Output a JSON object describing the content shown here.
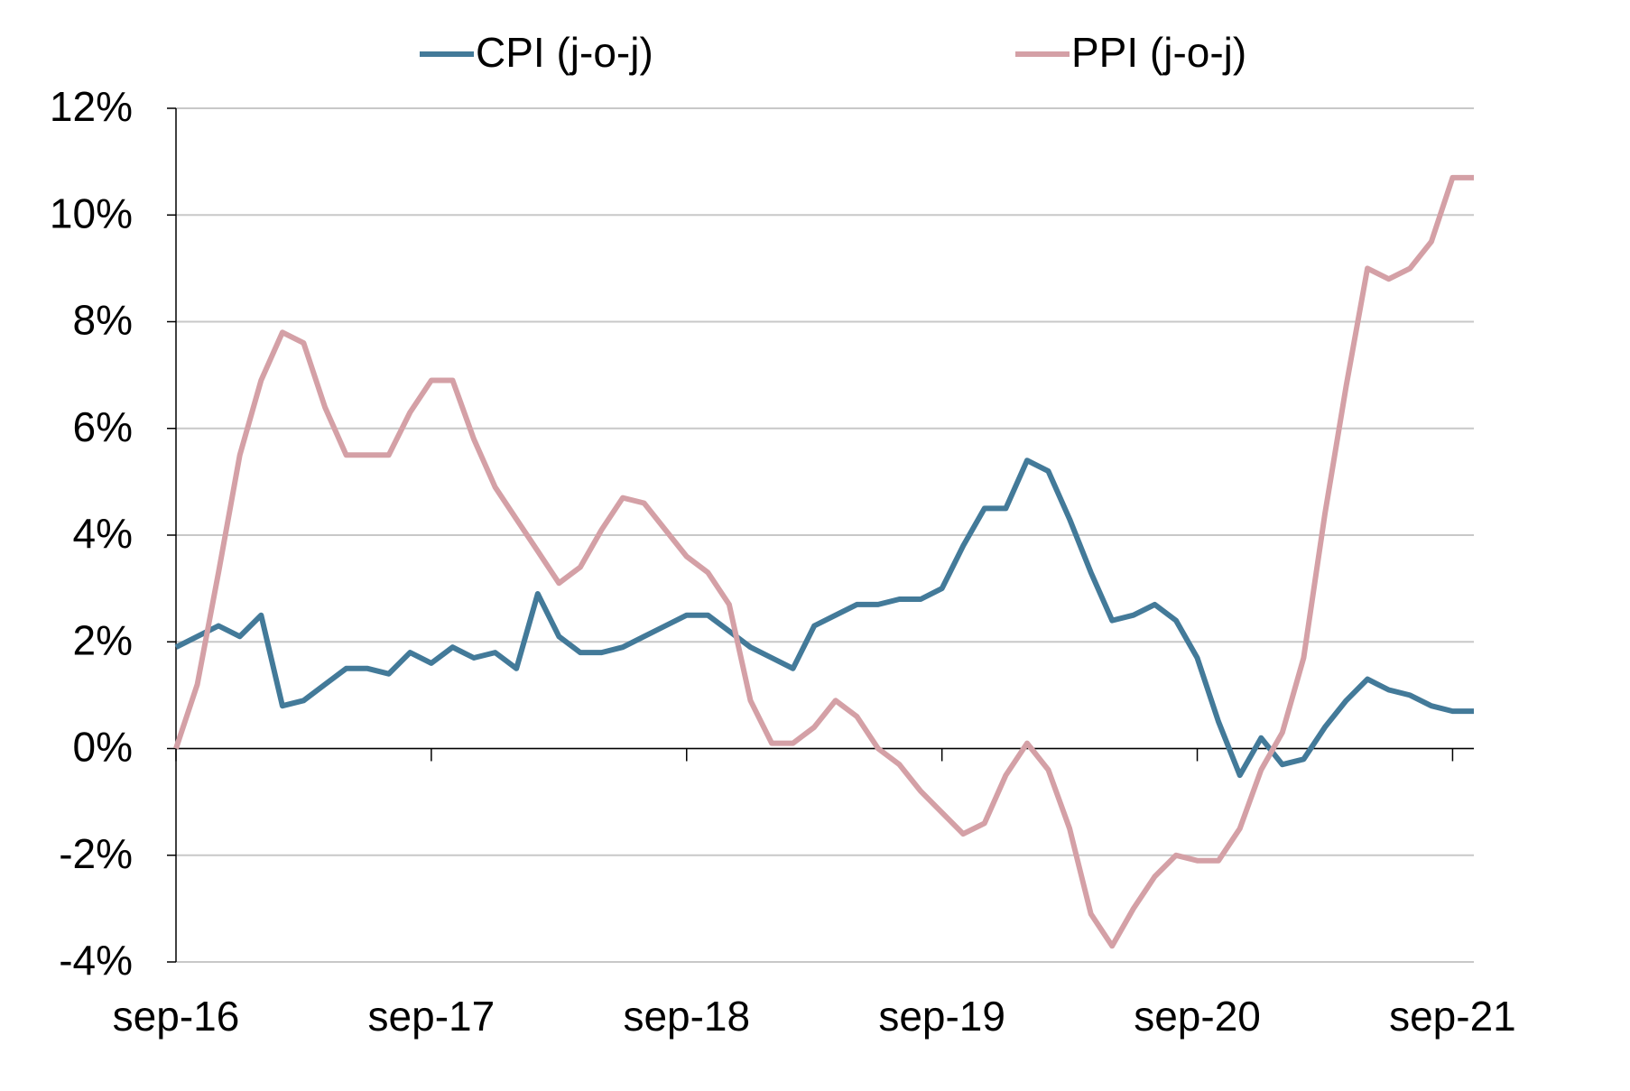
{
  "chart_data": {
    "type": "line",
    "categories": [
      "sep-16",
      null,
      null,
      null,
      null,
      null,
      null,
      null,
      null,
      null,
      null,
      null,
      "sep-17",
      null,
      null,
      null,
      null,
      null,
      null,
      null,
      null,
      null,
      null,
      null,
      "sep-18",
      null,
      null,
      null,
      null,
      null,
      null,
      null,
      null,
      null,
      null,
      null,
      "sep-19",
      null,
      null,
      null,
      null,
      null,
      null,
      null,
      null,
      null,
      null,
      null,
      "sep-20",
      null,
      null,
      null,
      null,
      null,
      null,
      null,
      null,
      null,
      null,
      null,
      "sep-21",
      null
    ],
    "series": [
      {
        "name": "CPI (j-o-j)",
        "color": "#437a99",
        "values": [
          1.9,
          2.1,
          2.3,
          2.1,
          2.5,
          0.8,
          0.9,
          1.2,
          1.5,
          1.5,
          1.4,
          1.8,
          1.6,
          1.9,
          1.7,
          1.8,
          1.5,
          2.9,
          2.1,
          1.8,
          1.8,
          1.9,
          2.1,
          2.3,
          2.5,
          2.5,
          2.2,
          1.9,
          1.7,
          1.5,
          2.3,
          2.5,
          2.7,
          2.7,
          2.8,
          2.8,
          3.0,
          3.8,
          4.5,
          4.5,
          5.4,
          5.2,
          4.3,
          3.3,
          2.4,
          2.5,
          2.7,
          2.4,
          1.7,
          0.5,
          -0.5,
          0.2,
          -0.3,
          -0.2,
          0.4,
          0.9,
          1.3,
          1.1,
          1.0,
          0.8,
          0.7,
          0.7
        ]
      },
      {
        "name": "PPI (j-o-j)",
        "color": "#d4a0a6",
        "values": [
          0.0,
          1.2,
          3.3,
          5.5,
          6.9,
          7.8,
          7.6,
          6.4,
          5.5,
          5.5,
          5.5,
          6.3,
          6.9,
          6.9,
          5.8,
          4.9,
          4.3,
          3.7,
          3.1,
          3.4,
          4.1,
          4.7,
          4.6,
          4.1,
          3.6,
          3.3,
          2.7,
          0.9,
          0.1,
          0.1,
          0.4,
          0.9,
          0.6,
          0.0,
          -0.3,
          -0.8,
          -1.2,
          -1.6,
          -1.4,
          -0.5,
          0.1,
          -0.4,
          -1.5,
          -3.1,
          -3.7,
          -3.0,
          -2.4,
          -2.0,
          -2.1,
          -2.1,
          -1.5,
          -0.4,
          0.3,
          1.7,
          4.4,
          6.8,
          9.0,
          8.8,
          9.0,
          9.5,
          10.7,
          10.7
        ]
      }
    ],
    "ylim": [
      -4,
      12
    ],
    "yticks": [
      {
        "value": -4,
        "label": "-4%"
      },
      {
        "value": -2,
        "label": "-2%"
      },
      {
        "value": 0,
        "label": "0%"
      },
      {
        "value": 2,
        "label": "2%"
      },
      {
        "value": 4,
        "label": "4%"
      },
      {
        "value": 6,
        "label": "6%"
      },
      {
        "value": 8,
        "label": "8%"
      },
      {
        "value": 10,
        "label": "10%"
      },
      {
        "value": 12,
        "label": "12%"
      }
    ],
    "grid": true,
    "legend": "top"
  }
}
